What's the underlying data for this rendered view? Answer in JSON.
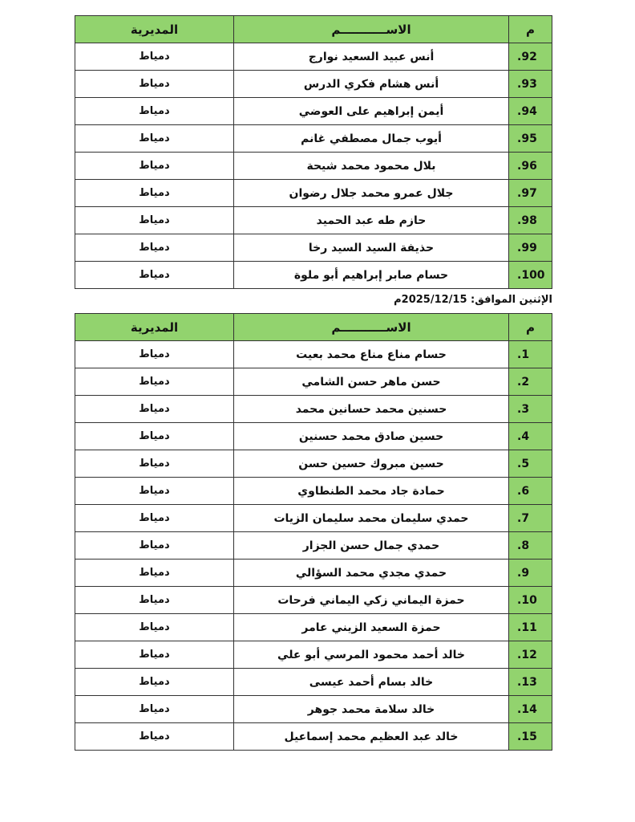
{
  "headers": {
    "num": "م",
    "name": "الاســـــــــــم",
    "directorate": "المديرية"
  },
  "colors": {
    "header_green": "#92d36e"
  },
  "date_line": "الإثنين الموافق: 2025/12/15م",
  "table1": [
    {
      "num": "92.",
      "name": "أنس عبيد السعيد نوارج",
      "directorate": "دمياط"
    },
    {
      "num": "93.",
      "name": "أنس هشام فكري الدرس",
      "directorate": "دمياط"
    },
    {
      "num": "94.",
      "name": "أيمن إبراهيم على العوضي",
      "directorate": "دمياط"
    },
    {
      "num": "95.",
      "name": "أيوب جمال مصطفي غانم",
      "directorate": "دمياط"
    },
    {
      "num": "96.",
      "name": "بلال محمود محمد شيحة",
      "directorate": "دمياط"
    },
    {
      "num": "97.",
      "name": "جلال عمرو محمد جلال رضوان",
      "directorate": "دمياط"
    },
    {
      "num": "98.",
      "name": "حازم طه عبد الحميد",
      "directorate": "دمياط"
    },
    {
      "num": "99.",
      "name": "حذيفة السيد السيد رخا",
      "directorate": "دمياط"
    },
    {
      "num": "100.",
      "name": "حسام صابر إبراهيم أبو ملوة",
      "directorate": "دمياط"
    }
  ],
  "table2": [
    {
      "num": "1.",
      "name": "حسام مناع مناع محمد بعيت",
      "directorate": "دمياط"
    },
    {
      "num": "2.",
      "name": "حسن ماهر حسن الشامي",
      "directorate": "دمياط"
    },
    {
      "num": "3.",
      "name": "حسنين محمد حسانين محمد",
      "directorate": "دمياط"
    },
    {
      "num": "4.",
      "name": "حسين صادق محمد حسنين",
      "directorate": "دمياط"
    },
    {
      "num": "5.",
      "name": "حسين مبروك حسين حسن",
      "directorate": "دمياط"
    },
    {
      "num": "6.",
      "name": "حمادة جاد محمد الطنطاوي",
      "directorate": "دمياط"
    },
    {
      "num": "7.",
      "name": "حمدي سليمان محمد سليمان الزيات",
      "directorate": "دمياط"
    },
    {
      "num": "8.",
      "name": "حمدي جمال حسن الجزار",
      "directorate": "دمياط"
    },
    {
      "num": "9.",
      "name": "حمدي مجدي محمد السؤالي",
      "directorate": "دمياط"
    },
    {
      "num": "10.",
      "name": "حمزة اليماني زكي اليماني فرحات",
      "directorate": "دمياط"
    },
    {
      "num": "11.",
      "name": "حمزة السعيد الزيني عامر",
      "directorate": "دمياط"
    },
    {
      "num": "12.",
      "name": "خالد أحمد محمود المرسي أبو علي",
      "directorate": "دمياط"
    },
    {
      "num": "13.",
      "name": "خالد بسام أحمد عيسى",
      "directorate": "دمياط"
    },
    {
      "num": "14.",
      "name": "خالد سلامة محمد جوهر",
      "directorate": "دمياط"
    },
    {
      "num": "15.",
      "name": "خالد عبد العظيم محمد إسماعيل",
      "directorate": "دمياط"
    }
  ]
}
